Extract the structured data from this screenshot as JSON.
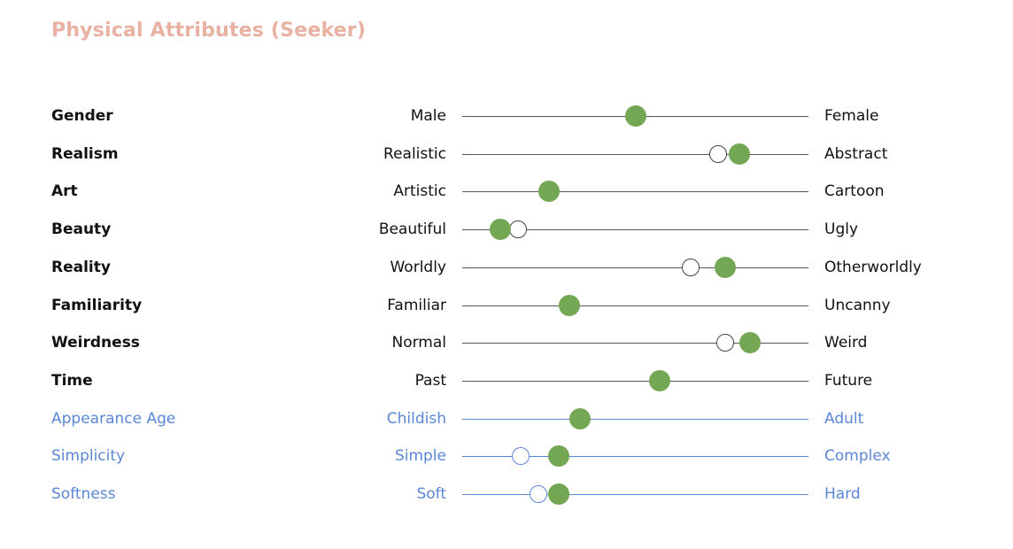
{
  "page_title": "Physical Attributes (Seeker)",
  "colors": {
    "title": "#E9B1A1",
    "core_text": "#111111",
    "core_line": "#555555",
    "extra": "#5B86D6",
    "filled_marker": "#73A753",
    "open_marker_stroke": "#444444"
  },
  "chart_data": {
    "type": "scatter",
    "title": "Physical Attributes (Seeker)",
    "xlim": [
      0,
      1
    ],
    "scale_note": "Semantic differential: 0 = left pole, 1 = right pole",
    "series": [
      {
        "name": "filled",
        "marker": "filled-green-circle"
      },
      {
        "name": "open",
        "marker": "open-circle"
      }
    ],
    "rows": [
      {
        "attribute": "Gender",
        "left": "Male",
        "right": "Female",
        "group": "core",
        "filled": 0.5,
        "open": null
      },
      {
        "attribute": "Realism",
        "left": "Realistic",
        "right": "Abstract",
        "group": "core",
        "filled": 0.8,
        "open": 0.74
      },
      {
        "attribute": "Art",
        "left": "Artistic",
        "right": "Cartoon",
        "group": "core",
        "filled": 0.25,
        "open": null
      },
      {
        "attribute": "Beauty",
        "left": "Beautiful",
        "right": "Ugly",
        "group": "core",
        "filled": 0.11,
        "open": 0.16
      },
      {
        "attribute": "Reality",
        "left": "Worldly",
        "right": "Otherworldly",
        "group": "core",
        "filled": 0.76,
        "open": 0.66
      },
      {
        "attribute": "Familiarity",
        "left": "Familiar",
        "right": "Uncanny",
        "group": "core",
        "filled": 0.31,
        "open": null
      },
      {
        "attribute": "Weirdness",
        "left": "Normal",
        "right": "Weird",
        "group": "core",
        "filled": 0.83,
        "open": 0.76
      },
      {
        "attribute": "Time",
        "left": "Past",
        "right": "Future",
        "group": "core",
        "filled": 0.57,
        "open": null
      },
      {
        "attribute": "Appearance Age",
        "left": "Childish",
        "right": "Adult",
        "group": "extra",
        "filled": 0.34,
        "open": null
      },
      {
        "attribute": "Simplicity",
        "left": "Simple",
        "right": "Complex",
        "group": "extra",
        "filled": 0.28,
        "open": 0.17
      },
      {
        "attribute": "Softness",
        "left": "Soft",
        "right": "Hard",
        "group": "extra",
        "filled": 0.28,
        "open": 0.22
      }
    ]
  }
}
